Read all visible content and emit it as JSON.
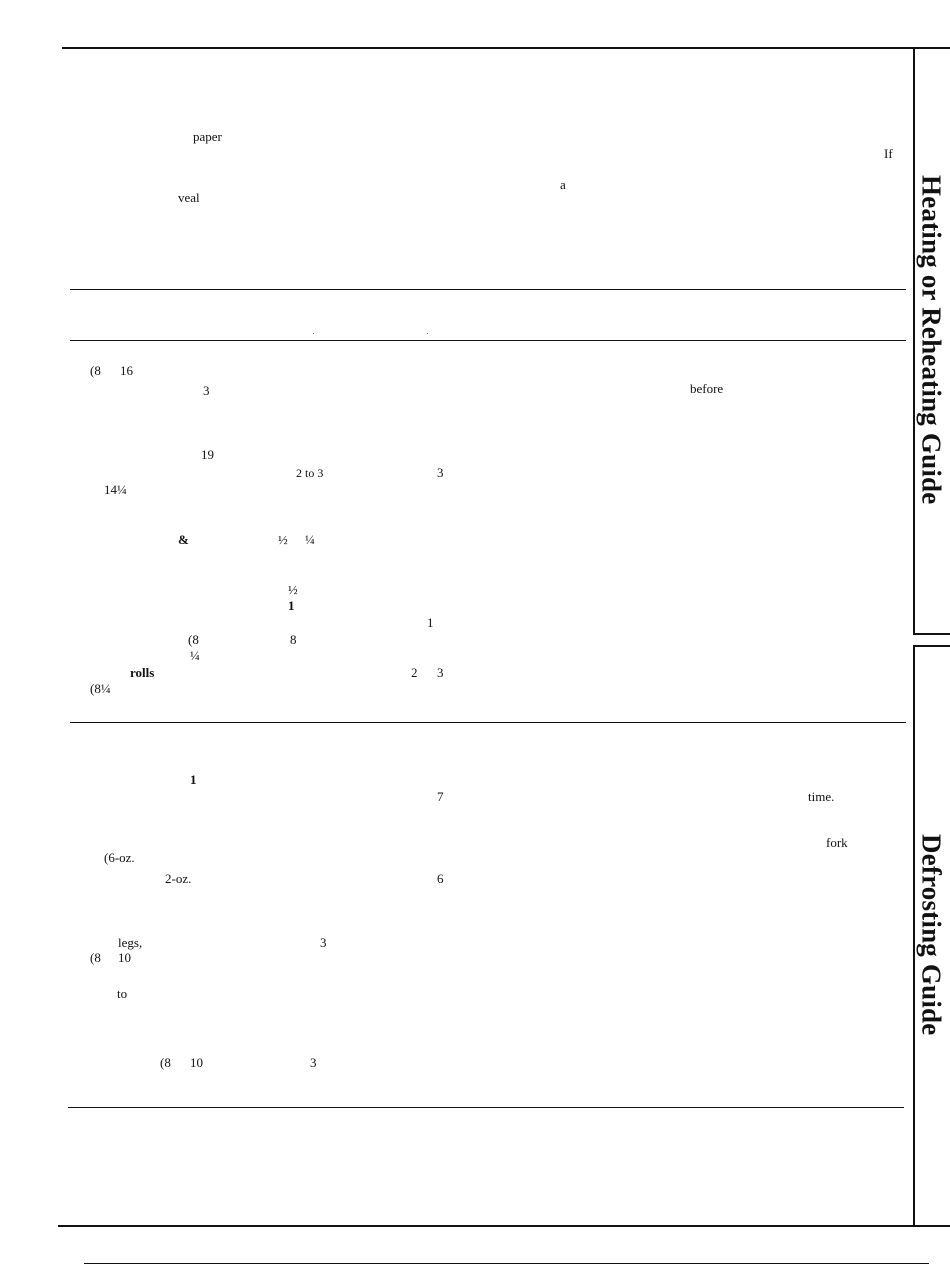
{
  "side_tabs": {
    "heating": "Heating or Reheating Guide",
    "defrosting": "Defrosting Guide"
  },
  "fragments": {
    "f01": "paper",
    "f02": "If",
    "f03": "a",
    "f04": "veal",
    "f05": "(8",
    "f06": "16",
    "f07": "3",
    "f08": "before",
    "f09": "19",
    "f10": "2 to 3",
    "f11": "3",
    "f12": "14¼",
    "f13": "&",
    "f14": "½",
    "f15": "¼",
    "f16": "½",
    "f17": "1",
    "f18": "1",
    "f19": "(8",
    "f20": "8",
    "f21": "¼",
    "f22": "rolls",
    "f23": "2",
    "f24": "3",
    "f25": "(8¼",
    "f26": "1",
    "f27": "7",
    "f28": "time.",
    "f29": "fork",
    "f30": "(6-oz.",
    "f31": "2-oz.",
    "f32": "6",
    "f33": "legs,",
    "f34": "3",
    "f35": "(8",
    "f36": "10",
    "f37": "to",
    "f38": "(8",
    "f39": "10",
    "f40": "3"
  }
}
